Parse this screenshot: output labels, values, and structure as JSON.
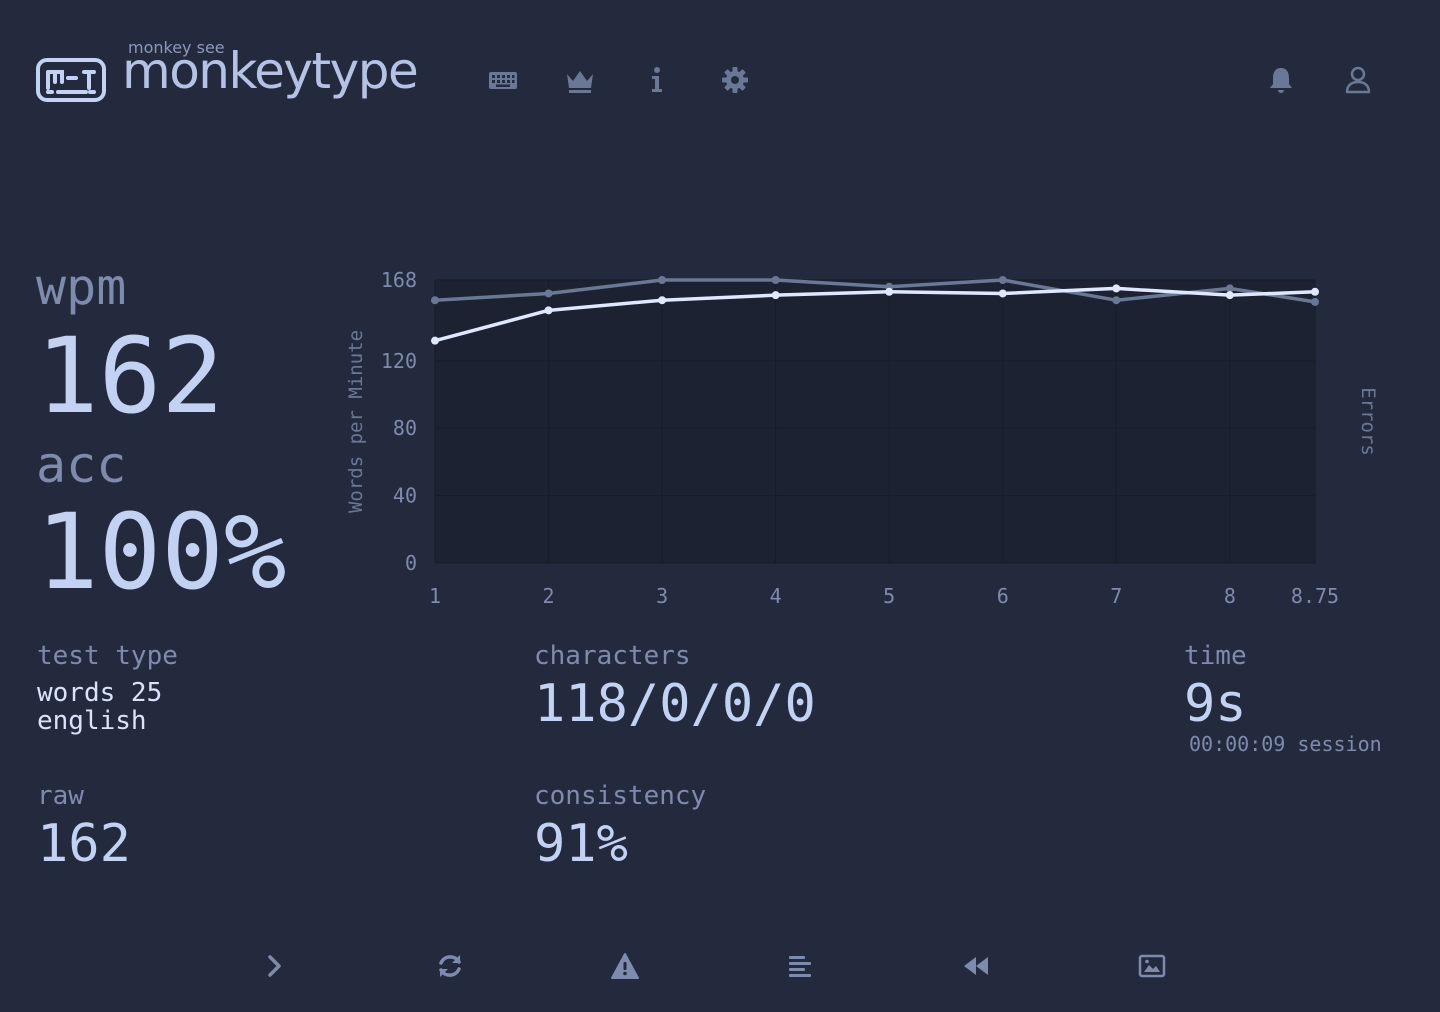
{
  "header": {
    "logo_small": "monkey see",
    "logo_big": "monkeytype",
    "nav_icons": [
      "keyboard-icon",
      "crown-icon",
      "info-icon",
      "gear-icon",
      "bell-icon",
      "user-icon"
    ]
  },
  "stats": {
    "wpm_label": "wpm",
    "wpm_value": "162",
    "acc_label": "acc",
    "acc_value": "100%",
    "test_type_label": "test type",
    "test_type_line1": "words 25",
    "test_type_line2": "english",
    "raw_label": "raw",
    "raw_value": "162",
    "characters_label": "characters",
    "characters_value": "118/0/0/0",
    "consistency_label": "consistency",
    "consistency_value": "91%",
    "time_label": "time",
    "time_value": "9s",
    "time_session": "00:00:09 session"
  },
  "colors": {
    "background": "#232a3d",
    "plot_background": "#1c2232",
    "wpm_line": "#dfe8ff",
    "raw_line": "#6a7895",
    "text_main": "#c3d2f3",
    "text_sub": "#7f8bac"
  },
  "chart_data": {
    "type": "line",
    "x": [
      1,
      2,
      3,
      4,
      5,
      6,
      7,
      8,
      8.75
    ],
    "x_tick_labels": [
      "1",
      "2",
      "3",
      "4",
      "5",
      "6",
      "7",
      "8",
      "8.75"
    ],
    "series": [
      {
        "name": "",
        "values": [
          156,
          160,
          168,
          168,
          164,
          168,
          156,
          163,
          155
        ]
      },
      {
        "name": "",
        "values": [
          132,
          150,
          156,
          159,
          161,
          160,
          163,
          159,
          161
        ]
      }
    ],
    "ylabel": "Words per Minute",
    "y2label": "Errors",
    "ylim": [
      0,
      168
    ],
    "y_ticks": [
      0,
      40,
      80,
      120,
      168
    ],
    "grid": true
  },
  "bottom_buttons": [
    {
      "icon": "next-test-icon"
    },
    {
      "icon": "restart-icon"
    },
    {
      "icon": "warning-icon"
    },
    {
      "icon": "words-history-icon"
    },
    {
      "icon": "replay-icon"
    },
    {
      "icon": "screenshot-icon"
    }
  ]
}
